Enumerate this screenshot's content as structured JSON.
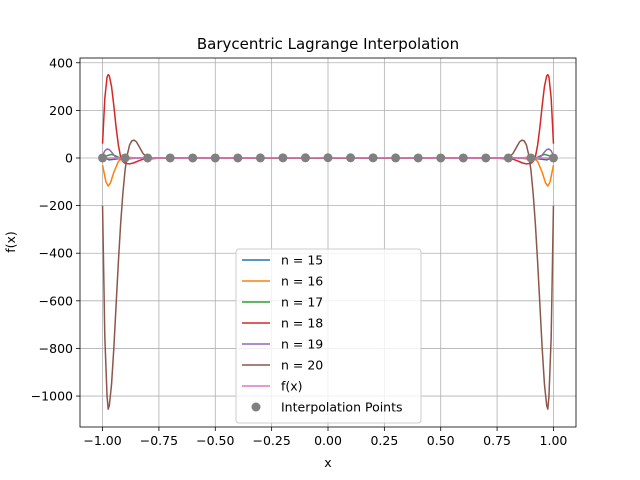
{
  "chart_data": {
    "type": "line",
    "title": "Barycentric Lagrange Interpolation",
    "xlabel": "x",
    "ylabel": "f(x)",
    "xlim": [
      -1.1,
      1.1
    ],
    "ylim": [
      -1130,
      420
    ],
    "xticks": [
      -1.0,
      -0.75,
      -0.5,
      -0.25,
      0.0,
      0.25,
      0.5,
      0.75,
      1.0
    ],
    "xtick_labels": [
      "−1.00",
      "−0.75",
      "−0.50",
      "−0.25",
      "0.00",
      "0.25",
      "0.50",
      "0.75",
      "1.00"
    ],
    "yticks": [
      400,
      200,
      0,
      -200,
      -400,
      -600,
      -800,
      -1000
    ],
    "ytick_labels": [
      "400",
      "200",
      "0",
      "−200",
      "−400",
      "−600",
      "−800",
      "−1000"
    ],
    "grid": true,
    "legend_position": "lower center",
    "series": [
      {
        "name": "n = 15",
        "color": "#1f77b4",
        "points": [
          [
            -1.0,
            5
          ],
          [
            -0.97,
            -8
          ],
          [
            -0.93,
            -3
          ],
          [
            -0.9,
            1
          ],
          [
            -0.85,
            0
          ],
          [
            0.85,
            0
          ],
          [
            0.9,
            1
          ],
          [
            0.93,
            -3
          ],
          [
            0.97,
            -8
          ],
          [
            1.0,
            5
          ]
        ]
      },
      {
        "name": "n = 16",
        "color": "#ff7f0e",
        "points": [
          [
            -1.0,
            -30
          ],
          [
            -0.985,
            -100
          ],
          [
            -0.975,
            -118
          ],
          [
            -0.965,
            -105
          ],
          [
            -0.95,
            -60
          ],
          [
            -0.93,
            -15
          ],
          [
            -0.91,
            2
          ],
          [
            -0.89,
            3
          ],
          [
            -0.85,
            0
          ],
          [
            0.85,
            0
          ],
          [
            0.89,
            3
          ],
          [
            0.91,
            2
          ],
          [
            0.93,
            -15
          ],
          [
            0.95,
            -60
          ],
          [
            0.965,
            -105
          ],
          [
            0.975,
            -118
          ],
          [
            0.985,
            -100
          ],
          [
            1.0,
            -30
          ]
        ]
      },
      {
        "name": "n = 17",
        "color": "#2ca02c",
        "points": [
          [
            -1.0,
            0
          ],
          [
            -0.98,
            10
          ],
          [
            -0.96,
            15
          ],
          [
            -0.94,
            8
          ],
          [
            -0.92,
            -2
          ],
          [
            -0.9,
            -5
          ],
          [
            -0.87,
            -2
          ],
          [
            -0.84,
            0
          ],
          [
            0.84,
            0
          ],
          [
            0.87,
            -2
          ],
          [
            0.9,
            -5
          ],
          [
            0.92,
            -2
          ],
          [
            0.94,
            8
          ],
          [
            0.96,
            15
          ],
          [
            0.98,
            10
          ],
          [
            1.0,
            0
          ]
        ]
      },
      {
        "name": "n = 18",
        "color": "#d62728",
        "points": [
          [
            -1.0,
            60
          ],
          [
            -0.99,
            250
          ],
          [
            -0.98,
            340
          ],
          [
            -0.975,
            350
          ],
          [
            -0.97,
            345
          ],
          [
            -0.96,
            300
          ],
          [
            -0.95,
            220
          ],
          [
            -0.94,
            130
          ],
          [
            -0.93,
            55
          ],
          [
            -0.92,
            5
          ],
          [
            -0.91,
            -15
          ],
          [
            -0.9,
            -22
          ],
          [
            -0.88,
            -25
          ],
          [
            -0.86,
            -20
          ],
          [
            -0.84,
            -12
          ],
          [
            -0.82,
            -5
          ],
          [
            -0.8,
            0
          ],
          [
            0.8,
            0
          ],
          [
            0.82,
            -5
          ],
          [
            0.84,
            -12
          ],
          [
            0.86,
            -20
          ],
          [
            0.88,
            -25
          ],
          [
            0.9,
            -22
          ],
          [
            0.91,
            -15
          ],
          [
            0.92,
            5
          ],
          [
            0.93,
            55
          ],
          [
            0.94,
            130
          ],
          [
            0.95,
            220
          ],
          [
            0.96,
            300
          ],
          [
            0.97,
            345
          ],
          [
            0.975,
            350
          ],
          [
            0.98,
            340
          ],
          [
            0.99,
            250
          ],
          [
            1.0,
            60
          ]
        ]
      },
      {
        "name": "n = 19",
        "color": "#9467bd",
        "points": [
          [
            -1.0,
            10
          ],
          [
            -0.99,
            30
          ],
          [
            -0.98,
            38
          ],
          [
            -0.97,
            35
          ],
          [
            -0.96,
            25
          ],
          [
            -0.95,
            12
          ],
          [
            -0.94,
            2
          ],
          [
            -0.93,
            -3
          ],
          [
            -0.91,
            -5
          ],
          [
            -0.89,
            -3
          ],
          [
            -0.87,
            0
          ],
          [
            0.87,
            0
          ],
          [
            0.89,
            -3
          ],
          [
            0.91,
            -5
          ],
          [
            0.93,
            -3
          ],
          [
            0.94,
            2
          ],
          [
            0.95,
            12
          ],
          [
            0.96,
            25
          ],
          [
            0.97,
            35
          ],
          [
            0.98,
            38
          ],
          [
            0.99,
            30
          ],
          [
            1.0,
            10
          ]
        ]
      },
      {
        "name": "n = 20",
        "color": "#8c564b",
        "points": [
          [
            -1.0,
            -200
          ],
          [
            -0.99,
            -750
          ],
          [
            -0.98,
            -1000
          ],
          [
            -0.975,
            -1055
          ],
          [
            -0.97,
            -1040
          ],
          [
            -0.96,
            -950
          ],
          [
            -0.95,
            -800
          ],
          [
            -0.94,
            -620
          ],
          [
            -0.93,
            -440
          ],
          [
            -0.92,
            -280
          ],
          [
            -0.91,
            -150
          ],
          [
            -0.9,
            -50
          ],
          [
            -0.89,
            15
          ],
          [
            -0.88,
            55
          ],
          [
            -0.87,
            72
          ],
          [
            -0.86,
            75
          ],
          [
            -0.85,
            68
          ],
          [
            -0.84,
            52
          ],
          [
            -0.83,
            35
          ],
          [
            -0.82,
            18
          ],
          [
            -0.8,
            2
          ],
          [
            -0.78,
            -3
          ],
          [
            -0.75,
            0
          ],
          [
            0.75,
            0
          ],
          [
            0.78,
            -3
          ],
          [
            0.8,
            2
          ],
          [
            0.82,
            18
          ],
          [
            0.83,
            35
          ],
          [
            0.84,
            52
          ],
          [
            0.85,
            68
          ],
          [
            0.86,
            75
          ],
          [
            0.87,
            72
          ],
          [
            0.88,
            55
          ],
          [
            0.89,
            15
          ],
          [
            0.9,
            -50
          ],
          [
            0.91,
            -150
          ],
          [
            0.92,
            -280
          ],
          [
            0.93,
            -440
          ],
          [
            0.94,
            -620
          ],
          [
            0.95,
            -800
          ],
          [
            0.96,
            -950
          ],
          [
            0.97,
            -1040
          ],
          [
            0.975,
            -1055
          ],
          [
            0.98,
            -1000
          ],
          [
            0.99,
            -750
          ],
          [
            1.0,
            -200
          ]
        ]
      },
      {
        "name": "f(x)",
        "color": "#e377c2",
        "points": [
          [
            -1.0,
            0.04
          ],
          [
            -0.5,
            0.14
          ],
          [
            -0.25,
            0.39
          ],
          [
            0.0,
            1.0
          ],
          [
            0.25,
            0.39
          ],
          [
            0.5,
            0.14
          ],
          [
            1.0,
            0.04
          ]
        ]
      }
    ],
    "scatter": {
      "name": "Interpolation Points",
      "color": "#808080",
      "x": [
        -1.0,
        -0.9,
        -0.8,
        -0.7,
        -0.6,
        -0.5,
        -0.4,
        -0.3,
        -0.2,
        -0.1,
        0.0,
        0.1,
        0.2,
        0.3,
        0.4,
        0.5,
        0.6,
        0.7,
        0.8,
        0.9,
        1.0
      ],
      "y": [
        0.04,
        0.05,
        0.06,
        0.08,
        0.1,
        0.14,
        0.2,
        0.31,
        0.5,
        0.8,
        1.0,
        0.8,
        0.5,
        0.31,
        0.2,
        0.14,
        0.1,
        0.08,
        0.06,
        0.05,
        0.04
      ]
    }
  }
}
